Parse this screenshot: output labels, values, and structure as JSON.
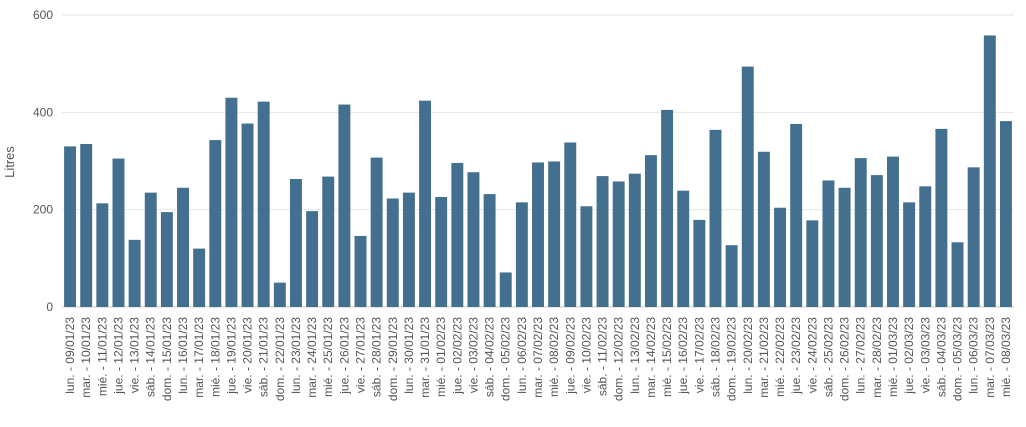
{
  "chart_data": {
    "type": "bar",
    "ylabel": "Litres",
    "ylim": [
      0,
      600
    ],
    "yticks": [
      0,
      200,
      400,
      600
    ],
    "grid": true,
    "bar_color": "#43708f",
    "categories": [
      "lun. - 09/01/23",
      "mar. - 10/01/23",
      "mié. - 11/01/23",
      "jue. - 12/01/23",
      "vie. - 13/01/23",
      "sáb. - 14/01/23",
      "dom. - 15/01/23",
      "lun. - 16/01/23",
      "mar. - 17/01/23",
      "mié. - 18/01/23",
      "jue. - 19/01/23",
      "vie. - 20/01/23",
      "sáb. - 21/01/23",
      "dom. - 22/01/23",
      "lun. - 23/01/23",
      "mar. - 24/01/23",
      "mié. - 25/01/23",
      "jue. - 26/01/23",
      "vie. - 27/01/23",
      "sáb. - 28/01/23",
      "dom. - 29/01/23",
      "lun. - 30/01/23",
      "mar. - 31/01/23",
      "mié. - 01/02/23",
      "jue. - 02/02/23",
      "vie. - 03/02/23",
      "sáb. - 04/02/23",
      "dom. - 05/02/23",
      "lun. - 06/02/23",
      "mar. - 07/02/23",
      "mié. - 08/02/23",
      "jue. - 09/02/23",
      "vie. - 10/02/23",
      "sáb. - 11/02/23",
      "dom. - 12/02/23",
      "lun. - 13/02/23",
      "mar. - 14/02/23",
      "mié. - 15/02/23",
      "jue. - 16/02/23",
      "vie. - 17/02/23",
      "sáb. - 18/02/23",
      "dom. - 19/02/23",
      "lun. - 20/02/23",
      "mar. - 21/02/23",
      "mié. - 22/02/23",
      "jue. - 23/02/23",
      "vie. - 24/02/23",
      "sáb. - 25/02/23",
      "dom. - 26/02/23",
      "lun. - 27/02/23",
      "mar. - 28/02/23",
      "mié. - 01/03/23",
      "jue. - 02/03/23",
      "vie. - 03/03/23",
      "sáb. - 04/03/23",
      "dom. - 05/03/23",
      "lun. - 06/03/23",
      "mar. - 07/03/23",
      "mié. - 08/03/23"
    ],
    "values": [
      330,
      335,
      213,
      305,
      138,
      235,
      195,
      245,
      120,
      343,
      430,
      377,
      422,
      50,
      263,
      197,
      268,
      416,
      146,
      307,
      223,
      235,
      424,
      226,
      296,
      277,
      232,
      71,
      215,
      297,
      299,
      338,
      207,
      269,
      258,
      274,
      312,
      405,
      239,
      179,
      364,
      127,
      494,
      319,
      204,
      376,
      178,
      260,
      245,
      306,
      271,
      309,
      215,
      248,
      366,
      133,
      287,
      558,
      382
    ]
  }
}
